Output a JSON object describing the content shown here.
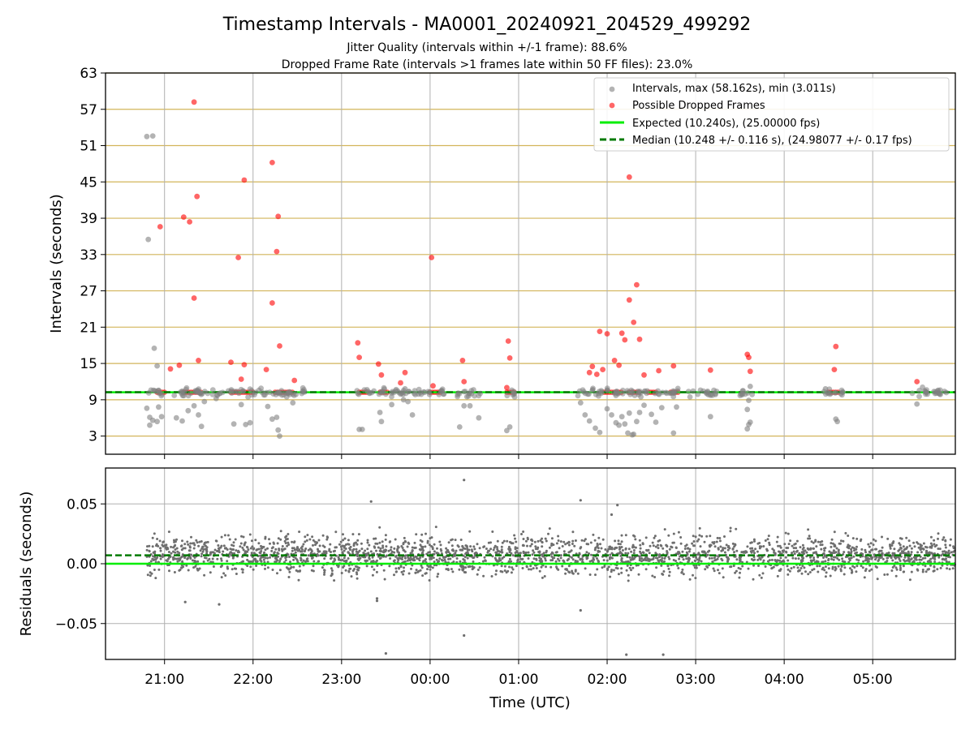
{
  "title": "Timestamp Intervals - MA0001_20240921_204529_499292",
  "subtitle_1": "Jitter Quality (intervals within +/-1 frame): 88.6%",
  "subtitle_2": "Dropped Frame Rate (intervals >1 frames late within 50 FF files): 23.0%",
  "colors": {
    "intervals": "#808080",
    "dropped": "#ff0000",
    "expected": "#00ee00",
    "median": "#007a00",
    "hgrid": "#d2b45a",
    "grid": "#b0b0b0"
  },
  "chart_data": [
    {
      "type": "scatter",
      "ylabel": "Intervals (seconds)",
      "ylim": [
        0,
        63
      ],
      "yticks": [
        "3",
        "9",
        "15",
        "21",
        "27",
        "33",
        "39",
        "45",
        "51",
        "57",
        "63"
      ],
      "grid": true,
      "legend_position": "top-right",
      "series": [
        {
          "name": "Intervals, max (58.162s), min (3.011s)",
          "points": [
            [
              "20:48",
              52.5
            ],
            [
              "20:52",
              52.6
            ],
            [
              "20:49",
              35.5
            ],
            [
              "20:53",
              17.5
            ],
            [
              "20:55",
              14.6
            ],
            [
              "20:48",
              7.6
            ],
            [
              "20:50",
              6.1
            ],
            [
              "20:52",
              5.6
            ],
            [
              "20:50",
              4.8
            ],
            [
              "20:55",
              5.4
            ],
            [
              "20:56",
              7.8
            ],
            [
              "20:58",
              6.2
            ],
            [
              "21:08",
              6.0
            ],
            [
              "21:12",
              5.5
            ],
            [
              "21:16",
              7.2
            ],
            [
              "21:20",
              8.0
            ],
            [
              "21:23",
              6.5
            ],
            [
              "21:25",
              4.6
            ],
            [
              "21:27",
              8.7
            ],
            [
              "21:35",
              9.2
            ],
            [
              "21:47",
              5.0
            ],
            [
              "21:52",
              8.2
            ],
            [
              "21:55",
              4.9
            ],
            [
              "21:58",
              5.2
            ],
            [
              "22:10",
              7.9
            ],
            [
              "22:13",
              5.8
            ],
            [
              "22:16",
              6.1
            ],
            [
              "22:17",
              4.0
            ],
            [
              "22:18",
              3.0
            ],
            [
              "22:27",
              8.5
            ],
            [
              "22:35",
              10.3
            ],
            [
              "23:12",
              4.1
            ],
            [
              "23:14",
              4.1
            ],
            [
              "23:26",
              6.9
            ],
            [
              "23:27",
              5.4
            ],
            [
              "23:34",
              8.2
            ],
            [
              "23:42",
              9.0
            ],
            [
              "23:45",
              8.7
            ],
            [
              "23:48",
              6.5
            ],
            [
              "23:43",
              10.8
            ],
            [
              "00:20",
              4.5
            ],
            [
              "00:23",
              8.0
            ],
            [
              "00:25",
              9.5
            ],
            [
              "00:27",
              8.0
            ],
            [
              "00:33",
              6.0
            ],
            [
              "00:52",
              3.9
            ],
            [
              "00:54",
              4.5
            ],
            [
              "01:42",
              8.5
            ],
            [
              "01:45",
              6.5
            ],
            [
              "01:48",
              5.5
            ],
            [
              "01:52",
              4.3
            ],
            [
              "01:55",
              3.6
            ],
            [
              "02:00",
              7.5
            ],
            [
              "02:03",
              6.5
            ],
            [
              "02:06",
              5.2
            ],
            [
              "02:08",
              4.8
            ],
            [
              "02:10",
              6.2
            ],
            [
              "02:12",
              5.0
            ],
            [
              "02:14",
              3.5
            ],
            [
              "02:15",
              6.8
            ],
            [
              "02:17",
              3.2
            ],
            [
              "02:18",
              3.3
            ],
            [
              "02:20",
              5.4
            ],
            [
              "02:22",
              6.9
            ],
            [
              "02:25",
              8.1
            ],
            [
              "02:30",
              6.6
            ],
            [
              "02:33",
              5.3
            ],
            [
              "02:37",
              7.7
            ],
            [
              "02:45",
              3.5
            ],
            [
              "02:47",
              7.8
            ],
            [
              "03:10",
              6.2
            ],
            [
              "03:35",
              4.2
            ],
            [
              "03:36",
              4.9
            ],
            [
              "03:37",
              5.3
            ],
            [
              "03:35",
              7.4
            ],
            [
              "03:36",
              8.9
            ],
            [
              "03:37",
              11.2
            ],
            [
              "04:28",
              10.8
            ],
            [
              "04:35",
              5.8
            ],
            [
              "04:36",
              5.4
            ],
            [
              "05:30",
              8.3
            ],
            [
              "05:45",
              10.0
            ]
          ]
        },
        {
          "name": "Possible Dropped Frames",
          "points": [
            [
              "21:20",
              58.2
            ],
            [
              "20:57",
              37.6
            ],
            [
              "21:13",
              39.2
            ],
            [
              "21:17",
              38.4
            ],
            [
              "21:22",
              42.6
            ],
            [
              "21:20",
              25.8
            ],
            [
              "21:23",
              15.5
            ],
            [
              "21:04",
              14.1
            ],
            [
              "21:10",
              14.7
            ],
            [
              "21:54",
              45.3
            ],
            [
              "21:50",
              32.5
            ],
            [
              "21:45",
              15.2
            ],
            [
              "21:52",
              12.4
            ],
            [
              "21:54",
              14.8
            ],
            [
              "22:13",
              48.2
            ],
            [
              "22:17",
              39.3
            ],
            [
              "22:16",
              33.5
            ],
            [
              "22:13",
              25.0
            ],
            [
              "22:18",
              17.9
            ],
            [
              "22:09",
              14.0
            ],
            [
              "22:28",
              12.2
            ],
            [
              "23:11",
              18.4
            ],
            [
              "23:12",
              16.0
            ],
            [
              "23:25",
              14.9
            ],
            [
              "23:27",
              13.1
            ],
            [
              "23:40",
              11.8
            ],
            [
              "23:43",
              13.5
            ],
            [
              "00:01",
              32.5
            ],
            [
              "00:02",
              11.3
            ],
            [
              "00:22",
              15.5
            ],
            [
              "00:23",
              12.0
            ],
            [
              "00:53",
              18.7
            ],
            [
              "00:54",
              15.9
            ],
            [
              "00:52",
              11.0
            ],
            [
              "01:55",
              20.3
            ],
            [
              "02:00",
              19.9
            ],
            [
              "02:15",
              25.5
            ],
            [
              "02:18",
              21.8
            ],
            [
              "02:20",
              28.0
            ],
            [
              "02:22",
              19.0
            ],
            [
              "02:10",
              20.0
            ],
            [
              "02:12",
              18.9
            ],
            [
              "02:15",
              45.8
            ],
            [
              "01:48",
              13.5
            ],
            [
              "01:50",
              14.5
            ],
            [
              "01:53",
              13.2
            ],
            [
              "01:57",
              14.0
            ],
            [
              "02:05",
              15.5
            ],
            [
              "02:08",
              14.7
            ],
            [
              "02:25",
              13.1
            ],
            [
              "02:35",
              13.8
            ],
            [
              "02:45",
              14.6
            ],
            [
              "03:10",
              13.9
            ],
            [
              "03:35",
              16.5
            ],
            [
              "03:36",
              16.0
            ],
            [
              "03:37",
              13.7
            ],
            [
              "04:35",
              17.8
            ],
            [
              "04:34",
              14.0
            ],
            [
              "05:30",
              12.0
            ]
          ]
        }
      ],
      "dropped_frame_bands": [
        [
          "20:55",
          "21:00"
        ],
        [
          "21:13",
          "21:25"
        ],
        [
          "21:45",
          "22:00"
        ],
        [
          "22:15",
          "22:28"
        ],
        [
          "23:12",
          "23:18"
        ],
        [
          "23:26",
          "23:32"
        ],
        [
          "00:00",
          "00:08"
        ],
        [
          "00:52",
          "00:58"
        ],
        [
          "01:58",
          "02:02"
        ],
        [
          "02:03",
          "02:11"
        ],
        [
          "02:15",
          "02:22"
        ],
        [
          "02:28",
          "02:33"
        ],
        [
          "02:43",
          "02:48"
        ],
        [
          "04:30",
          "04:37"
        ]
      ],
      "lines": [
        {
          "name": "Expected (10.240s), (25.00000 fps)",
          "y": 10.24,
          "style": "solid"
        },
        {
          "name": "Median (10.248 +/- 0.116 s), (24.98077 +/- 0.17 fps)",
          "y": 10.248,
          "style": "dashed"
        }
      ]
    },
    {
      "type": "scatter",
      "xlabel": "Time (UTC)",
      "ylabel": "Residuals (seconds)",
      "x_range": [
        "20:20",
        "05:56"
      ],
      "xticks": [
        "21:00",
        "22:00",
        "23:00",
        "00:00",
        "01:00",
        "02:00",
        "03:00",
        "04:00",
        "05:00"
      ],
      "ylim": [
        -0.08,
        0.08
      ],
      "yticks": [
        "0.05",
        "0.00",
        "−0.05"
      ],
      "grid": true,
      "residual_band": {
        "center": 0.007,
        "spread": 0.011
      },
      "outliers": [
        [
          "00:23",
          0.07
        ],
        [
          "01:42",
          0.053
        ],
        [
          "02:03",
          0.041
        ],
        [
          "02:07",
          0.049
        ],
        [
          "23:20",
          0.052
        ],
        [
          "23:30",
          -0.075
        ],
        [
          "00:23",
          -0.06
        ],
        [
          "02:13",
          -0.076
        ],
        [
          "02:38",
          -0.076
        ],
        [
          "01:42",
          -0.039
        ],
        [
          "21:37",
          -0.034
        ],
        [
          "21:14",
          -0.032
        ],
        [
          "23:24",
          -0.029
        ],
        [
          "23:24",
          -0.031
        ]
      ],
      "lines": [
        {
          "name": "expected",
          "y": 0.0,
          "style": "solid"
        },
        {
          "name": "median",
          "y": 0.007,
          "style": "dashed"
        }
      ]
    }
  ]
}
